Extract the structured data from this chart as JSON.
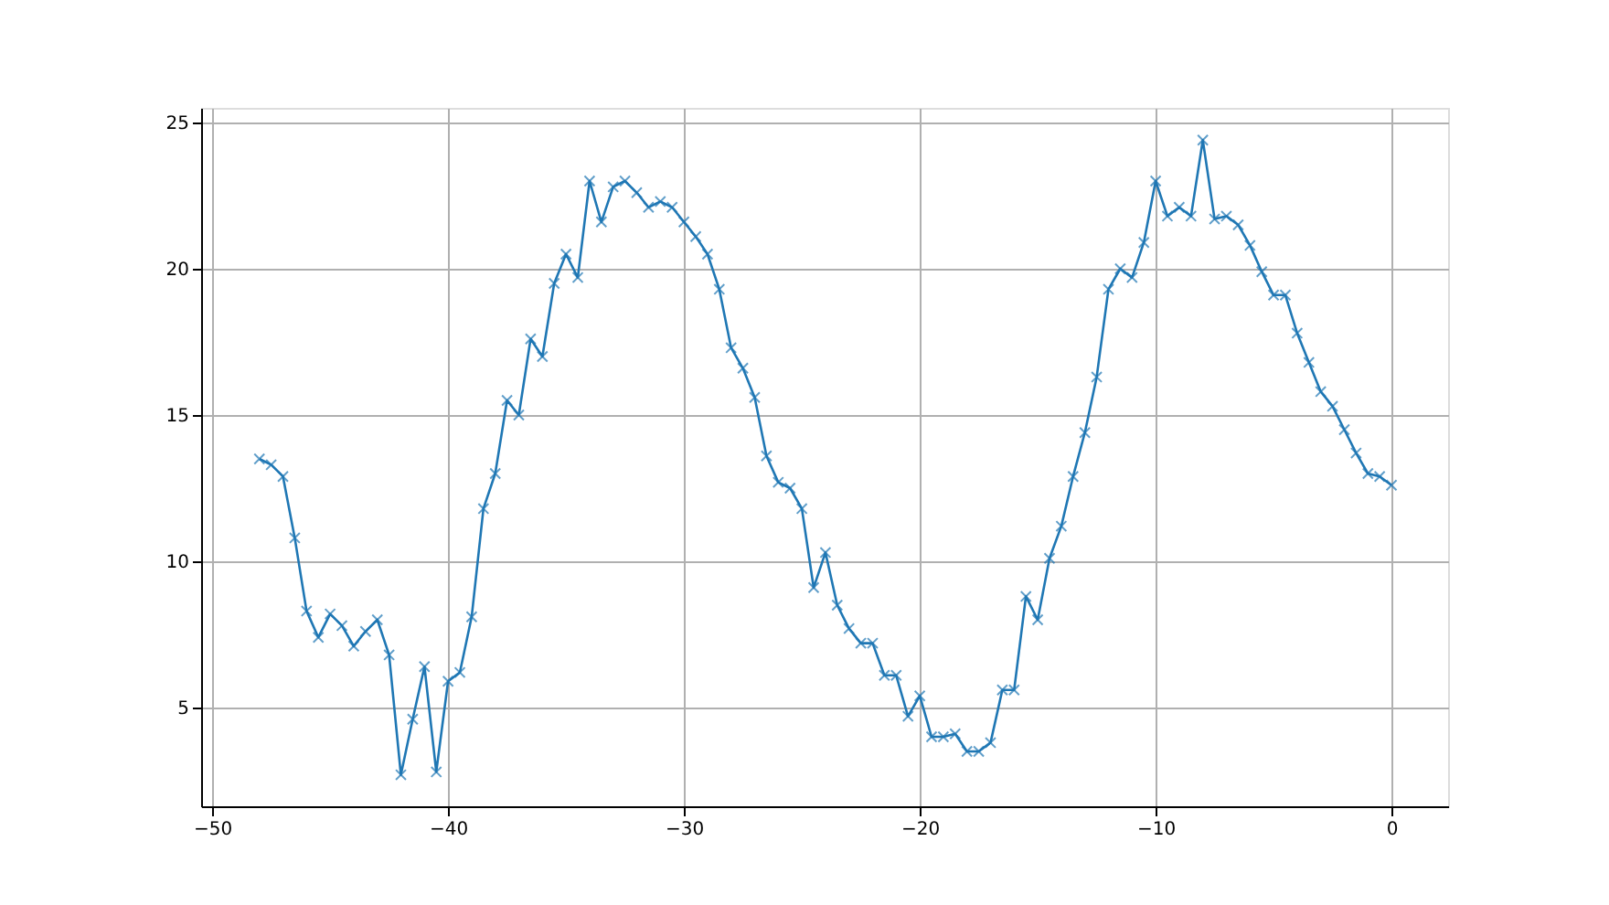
{
  "chart_data": {
    "type": "line",
    "marker": "cross",
    "grid": true,
    "xlim": [
      -50.47,
      2.4
    ],
    "xticks": [
      -50,
      -40,
      -30,
      -20,
      -10,
      0
    ],
    "ylim": [
      1.625,
      25.5
    ],
    "yticks": [
      5,
      10,
      15,
      20,
      25
    ],
    "x": [
      -48,
      -47.5,
      -47,
      -46.5,
      -46,
      -45.5,
      -45,
      -44.5,
      -44,
      -43.5,
      -43,
      -42.5,
      -42,
      -41.5,
      -41,
      -40.5,
      -40,
      -39.5,
      -39,
      -38.5,
      -38,
      -37.5,
      -37,
      -36.5,
      -36,
      -35.5,
      -35,
      -34.5,
      -34,
      -33.5,
      -33,
      -32.5,
      -32,
      -31.5,
      -31,
      -30.5,
      -30,
      -29.5,
      -29,
      -28.5,
      -28,
      -27.5,
      -27,
      -26.5,
      -26,
      -25.5,
      -25,
      -24.5,
      -24,
      -23.5,
      -23,
      -22.5,
      -22,
      -21.5,
      -21,
      -20.5,
      -20,
      -19.5,
      -19,
      -18.5,
      -18,
      -17.5,
      -17,
      -16.5,
      -16,
      -15.5,
      -15,
      -14.5,
      -14,
      -13.5,
      -13,
      -12.5,
      -12,
      -11.5,
      -11,
      -10.5,
      -10,
      -9.5,
      -9,
      -8.5,
      -8,
      -7.5,
      -7,
      -6.5,
      -6,
      -5.5,
      -5,
      -4.5,
      -4,
      -3.5,
      -3,
      -2.5,
      -2,
      -1.5,
      -1,
      -0.5,
      0
    ],
    "series": [
      {
        "color": "#1f77b4",
        "values": [
          13.5,
          13.3,
          12.9,
          10.8,
          8.3,
          7.4,
          8.2,
          7.8,
          7.1,
          7.6,
          8.0,
          6.8,
          2.7,
          4.6,
          6.4,
          2.8,
          5.9,
          6.2,
          8.1,
          11.8,
          13.0,
          15.5,
          15.0,
          17.6,
          17.0,
          19.5,
          20.5,
          19.7,
          23.0,
          21.6,
          22.8,
          23.0,
          22.6,
          22.1,
          22.3,
          22.1,
          21.6,
          21.1,
          20.5,
          19.3,
          17.3,
          16.6,
          15.6,
          13.6,
          12.7,
          12.5,
          11.8,
          9.1,
          10.3,
          8.5,
          7.7,
          7.2,
          7.2,
          6.1,
          6.1,
          4.7,
          5.4,
          4.0,
          4.0,
          4.1,
          3.5,
          3.5,
          3.8,
          5.6,
          5.6,
          8.8,
          8.0,
          10.1,
          11.2,
          12.9,
          14.4,
          16.3,
          19.3,
          20.0,
          19.7,
          20.9,
          23.0,
          21.8,
          22.1,
          21.8,
          24.4,
          21.7,
          21.8,
          21.5,
          20.8,
          19.9,
          19.1,
          19.1,
          17.8,
          16.8,
          15.8,
          15.3,
          14.5,
          13.7,
          13.0,
          12.9,
          12.6
        ]
      }
    ]
  }
}
